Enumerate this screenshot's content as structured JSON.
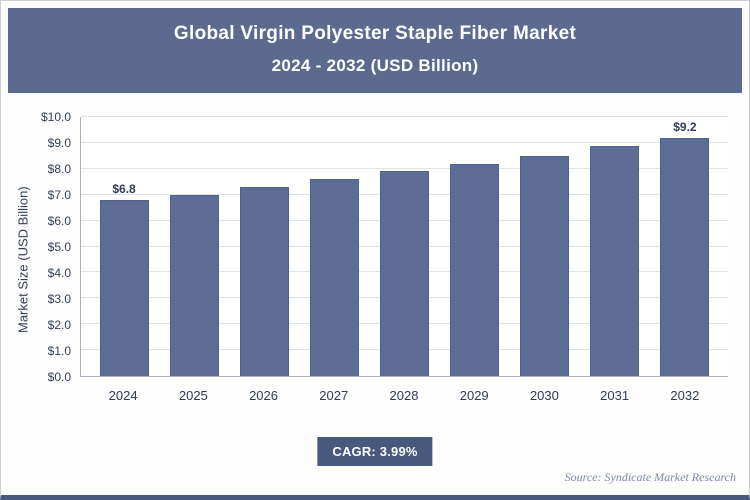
{
  "header": {
    "title_line1": "Global Virgin Polyester Staple Fiber Market",
    "title_line2": "2024 - 2032 (USD Billion)"
  },
  "chart_data": {
    "type": "bar",
    "title": "Global Virgin Polyester Staple Fiber Market 2024 - 2032 (USD Billion)",
    "categories": [
      "2024",
      "2025",
      "2026",
      "2027",
      "2028",
      "2029",
      "2030",
      "2031",
      "2032"
    ],
    "values": [
      6.8,
      7.0,
      7.3,
      7.6,
      7.9,
      8.2,
      8.5,
      8.9,
      9.2
    ],
    "bar_labels": [
      "$6.8",
      "",
      "",
      "",
      "",
      "",
      "",
      "",
      "$9.2"
    ],
    "xlabel": "",
    "ylabel": "Market Size (USD Billion)",
    "ylim": [
      0,
      10
    ],
    "grid": true,
    "legend_position": "none",
    "bar_color": "#5d6d96",
    "yticks": [
      {
        "value": 0,
        "label": "$0.0"
      },
      {
        "value": 1,
        "label": "$1.0"
      },
      {
        "value": 2,
        "label": "$2.0"
      },
      {
        "value": 3,
        "label": "$3.0"
      },
      {
        "value": 4,
        "label": "$4.0"
      },
      {
        "value": 5,
        "label": "$5.0"
      },
      {
        "value": 6,
        "label": "$6.0"
      },
      {
        "value": 7,
        "label": "$7.0"
      },
      {
        "value": 8,
        "label": "$8.0"
      },
      {
        "value": 9,
        "label": "$9.0"
      },
      {
        "value": 10,
        "label": "$10.0"
      }
    ]
  },
  "footer": {
    "cagr_label": "CAGR: 3.99%",
    "source": "Source: Syndicate Market Research"
  },
  "colors": {
    "header_bg": "#5c6a90",
    "bar": "#5d6d96",
    "badge_bg": "#475a7d",
    "bottom_border": "#475a7d",
    "grid": "#dfe3e8",
    "source_text": "#7c8aa5"
  }
}
